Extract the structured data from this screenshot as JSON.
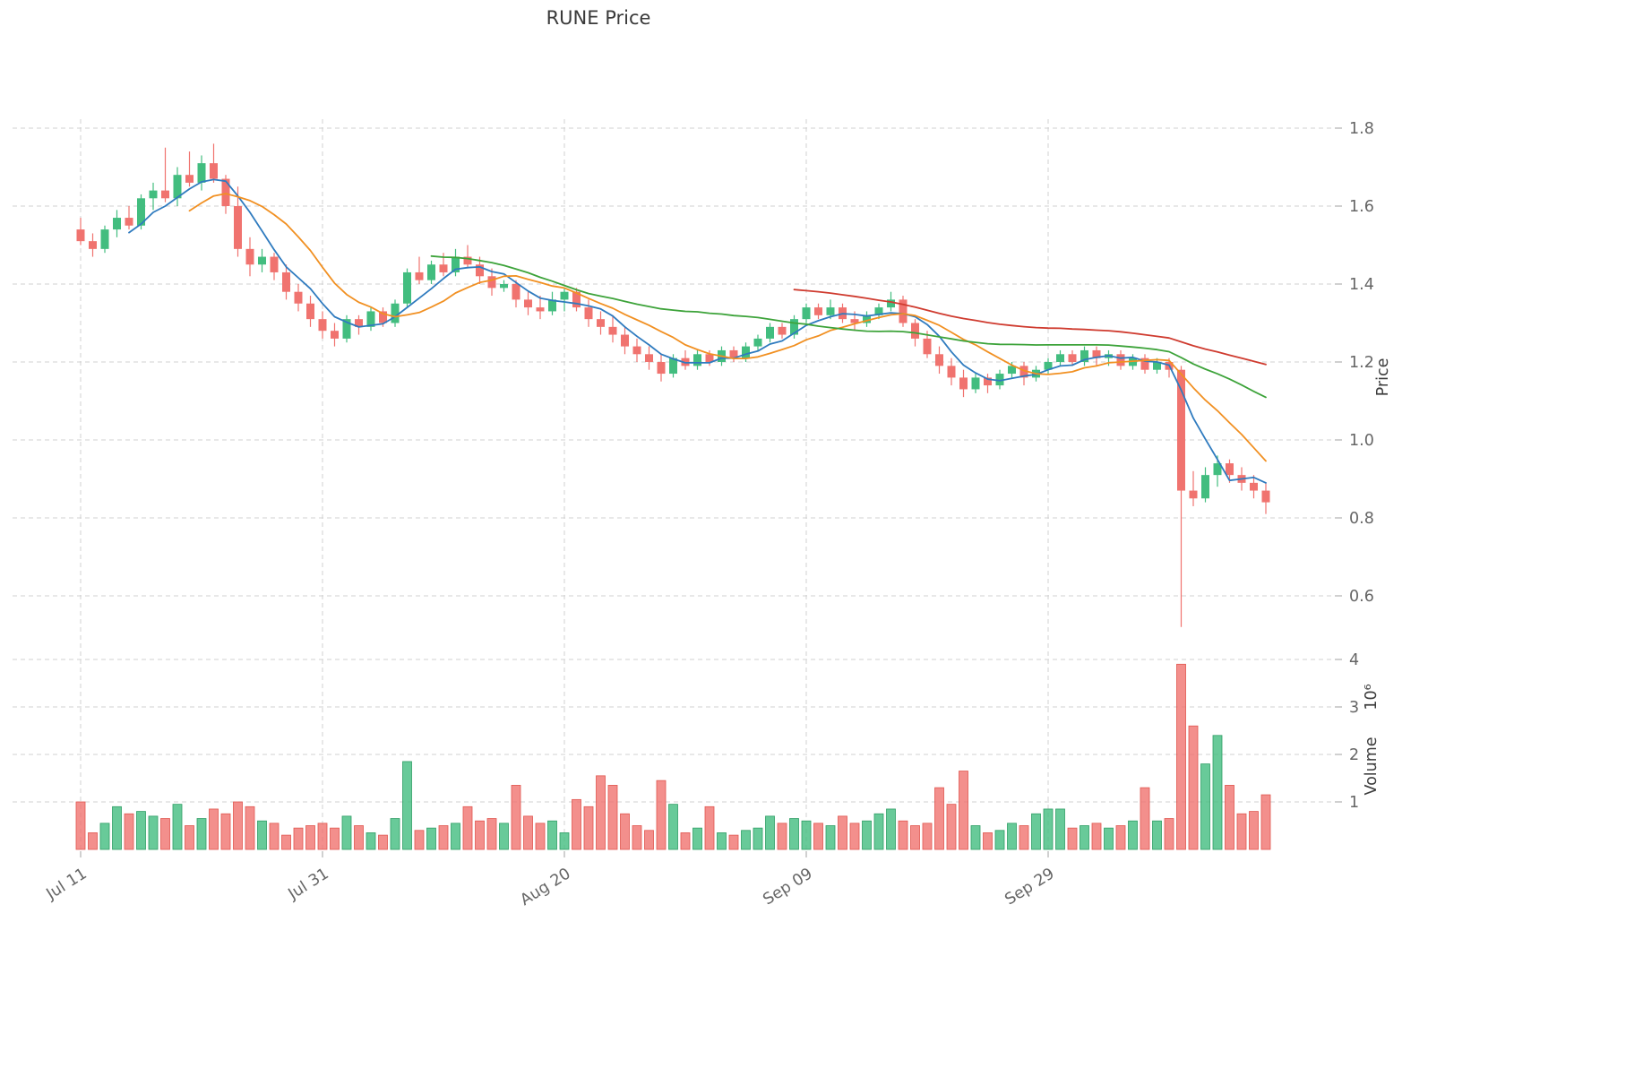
{
  "chart_data": {
    "type": "candlestick",
    "title": "RUNE Price",
    "xlabel": "",
    "ylabel": "Price",
    "ylabel2": "Volume",
    "ylabel2_offset": "10⁶",
    "grid": true,
    "legend": false,
    "ylim": [
      0.45,
      1.85
    ],
    "volume_ylim": [
      0,
      4.3
    ],
    "price_ticks": [
      0.6,
      0.8,
      1.0,
      1.2,
      1.4,
      1.6,
      1.8
    ],
    "volume_ticks": [
      1,
      2,
      3,
      4
    ],
    "x_ticks": [
      {
        "label": "Jul 11",
        "i": 0
      },
      {
        "label": "Jul 31",
        "i": 20
      },
      {
        "label": "Aug 20",
        "i": 40
      },
      {
        "label": "Sep 09",
        "i": 60
      },
      {
        "label": "Sep 29",
        "i": 80
      }
    ],
    "candle_columns": [
      "open",
      "high",
      "low",
      "close",
      "volume_millions"
    ],
    "candles": [
      [
        1.54,
        1.57,
        1.5,
        1.51,
        1.0
      ],
      [
        1.51,
        1.53,
        1.47,
        1.49,
        0.35
      ],
      [
        1.49,
        1.55,
        1.48,
        1.54,
        0.55
      ],
      [
        1.54,
        1.59,
        1.52,
        1.57,
        0.9
      ],
      [
        1.57,
        1.6,
        1.54,
        1.55,
        0.75
      ],
      [
        1.55,
        1.63,
        1.54,
        1.62,
        0.8
      ],
      [
        1.62,
        1.66,
        1.59,
        1.64,
        0.7
      ],
      [
        1.64,
        1.75,
        1.61,
        1.62,
        0.65
      ],
      [
        1.62,
        1.7,
        1.6,
        1.68,
        0.95
      ],
      [
        1.68,
        1.74,
        1.65,
        1.66,
        0.5
      ],
      [
        1.66,
        1.73,
        1.64,
        1.71,
        0.65
      ],
      [
        1.71,
        1.76,
        1.66,
        1.67,
        0.85
      ],
      [
        1.67,
        1.68,
        1.58,
        1.6,
        0.75
      ],
      [
        1.6,
        1.65,
        1.47,
        1.49,
        1.0
      ],
      [
        1.49,
        1.52,
        1.42,
        1.45,
        0.9
      ],
      [
        1.45,
        1.49,
        1.43,
        1.47,
        0.6
      ],
      [
        1.47,
        1.48,
        1.41,
        1.43,
        0.55
      ],
      [
        1.43,
        1.45,
        1.36,
        1.38,
        0.3
      ],
      [
        1.38,
        1.4,
        1.33,
        1.35,
        0.45
      ],
      [
        1.35,
        1.37,
        1.29,
        1.31,
        0.5
      ],
      [
        1.31,
        1.33,
        1.26,
        1.28,
        0.55
      ],
      [
        1.28,
        1.3,
        1.24,
        1.26,
        0.45
      ],
      [
        1.26,
        1.32,
        1.25,
        1.31,
        0.7
      ],
      [
        1.31,
        1.32,
        1.27,
        1.29,
        0.5
      ],
      [
        1.29,
        1.34,
        1.28,
        1.33,
        0.35
      ],
      [
        1.33,
        1.34,
        1.29,
        1.3,
        0.3
      ],
      [
        1.3,
        1.36,
        1.29,
        1.35,
        0.65
      ],
      [
        1.35,
        1.44,
        1.34,
        1.43,
        1.85
      ],
      [
        1.43,
        1.47,
        1.4,
        1.41,
        0.4
      ],
      [
        1.41,
        1.46,
        1.4,
        1.45,
        0.45
      ],
      [
        1.45,
        1.48,
        1.42,
        1.43,
        0.5
      ],
      [
        1.43,
        1.49,
        1.42,
        1.47,
        0.55
      ],
      [
        1.47,
        1.5,
        1.44,
        1.45,
        0.9
      ],
      [
        1.45,
        1.47,
        1.4,
        1.42,
        0.6
      ],
      [
        1.42,
        1.44,
        1.37,
        1.39,
        0.65
      ],
      [
        1.39,
        1.41,
        1.38,
        1.4,
        0.55
      ],
      [
        1.4,
        1.41,
        1.34,
        1.36,
        1.35
      ],
      [
        1.36,
        1.38,
        1.32,
        1.34,
        0.7
      ],
      [
        1.34,
        1.37,
        1.31,
        1.33,
        0.55
      ],
      [
        1.33,
        1.38,
        1.32,
        1.36,
        0.6
      ],
      [
        1.36,
        1.39,
        1.33,
        1.38,
        0.35
      ],
      [
        1.38,
        1.39,
        1.33,
        1.34,
        1.05
      ],
      [
        1.34,
        1.36,
        1.29,
        1.31,
        0.9
      ],
      [
        1.31,
        1.33,
        1.27,
        1.29,
        1.55
      ],
      [
        1.29,
        1.32,
        1.25,
        1.27,
        1.35
      ],
      [
        1.27,
        1.29,
        1.22,
        1.24,
        0.75
      ],
      [
        1.24,
        1.26,
        1.2,
        1.22,
        0.5
      ],
      [
        1.22,
        1.24,
        1.18,
        1.2,
        0.4
      ],
      [
        1.2,
        1.22,
        1.15,
        1.17,
        1.45
      ],
      [
        1.17,
        1.22,
        1.16,
        1.21,
        0.95
      ],
      [
        1.21,
        1.23,
        1.18,
        1.19,
        0.35
      ],
      [
        1.19,
        1.23,
        1.18,
        1.22,
        0.45
      ],
      [
        1.22,
        1.23,
        1.19,
        1.2,
        0.9
      ],
      [
        1.2,
        1.24,
        1.19,
        1.23,
        0.35
      ],
      [
        1.23,
        1.24,
        1.2,
        1.21,
        0.3
      ],
      [
        1.21,
        1.25,
        1.2,
        1.24,
        0.4
      ],
      [
        1.24,
        1.27,
        1.23,
        1.26,
        0.45
      ],
      [
        1.26,
        1.3,
        1.25,
        1.29,
        0.7
      ],
      [
        1.29,
        1.3,
        1.26,
        1.27,
        0.55
      ],
      [
        1.27,
        1.32,
        1.26,
        1.31,
        0.65
      ],
      [
        1.31,
        1.35,
        1.3,
        1.34,
        0.6
      ],
      [
        1.34,
        1.35,
        1.31,
        1.32,
        0.55
      ],
      [
        1.32,
        1.36,
        1.31,
        1.34,
        0.5
      ],
      [
        1.34,
        1.35,
        1.3,
        1.31,
        0.7
      ],
      [
        1.31,
        1.33,
        1.28,
        1.3,
        0.55
      ],
      [
        1.3,
        1.33,
        1.29,
        1.32,
        0.6
      ],
      [
        1.32,
        1.35,
        1.31,
        1.34,
        0.75
      ],
      [
        1.34,
        1.38,
        1.33,
        1.36,
        0.85
      ],
      [
        1.36,
        1.37,
        1.29,
        1.3,
        0.6
      ],
      [
        1.3,
        1.31,
        1.24,
        1.26,
        0.5
      ],
      [
        1.26,
        1.28,
        1.21,
        1.22,
        0.55
      ],
      [
        1.22,
        1.24,
        1.17,
        1.19,
        1.3
      ],
      [
        1.19,
        1.21,
        1.14,
        1.16,
        0.95
      ],
      [
        1.16,
        1.18,
        1.11,
        1.13,
        1.65
      ],
      [
        1.13,
        1.17,
        1.12,
        1.16,
        0.5
      ],
      [
        1.16,
        1.17,
        1.12,
        1.14,
        0.35
      ],
      [
        1.14,
        1.18,
        1.13,
        1.17,
        0.4
      ],
      [
        1.17,
        1.2,
        1.16,
        1.19,
        0.55
      ],
      [
        1.19,
        1.2,
        1.14,
        1.16,
        0.5
      ],
      [
        1.16,
        1.19,
        1.15,
        1.18,
        0.75
      ],
      [
        1.18,
        1.21,
        1.17,
        1.2,
        0.85
      ],
      [
        1.2,
        1.23,
        1.19,
        1.22,
        0.85
      ],
      [
        1.22,
        1.23,
        1.19,
        1.2,
        0.45
      ],
      [
        1.2,
        1.24,
        1.19,
        1.23,
        0.5
      ],
      [
        1.23,
        1.24,
        1.19,
        1.21,
        0.55
      ],
      [
        1.21,
        1.23,
        1.19,
        1.22,
        0.45
      ],
      [
        1.22,
        1.23,
        1.18,
        1.19,
        0.5
      ],
      [
        1.19,
        1.22,
        1.18,
        1.21,
        0.6
      ],
      [
        1.21,
        1.22,
        1.17,
        1.18,
        1.3
      ],
      [
        1.18,
        1.21,
        1.17,
        1.2,
        0.6
      ],
      [
        1.2,
        1.21,
        1.16,
        1.18,
        0.65
      ],
      [
        1.18,
        1.19,
        0.52,
        0.87,
        3.9
      ],
      [
        0.87,
        0.92,
        0.83,
        0.85,
        2.6
      ],
      [
        0.85,
        0.93,
        0.84,
        0.91,
        1.8
      ],
      [
        0.91,
        0.96,
        0.88,
        0.94,
        2.4
      ],
      [
        0.94,
        0.95,
        0.89,
        0.91,
        1.35
      ],
      [
        0.91,
        0.93,
        0.87,
        0.89,
        0.75
      ],
      [
        0.89,
        0.91,
        0.85,
        0.87,
        0.8
      ],
      [
        0.87,
        0.89,
        0.81,
        0.84,
        1.15
      ]
    ],
    "moving_averages": [
      {
        "name": "MA5",
        "window": 5,
        "color": "#2f7bbf"
      },
      {
        "name": "MA10",
        "window": 10,
        "color": "#f19022"
      },
      {
        "name": "MA30",
        "window": 30,
        "color": "#3da33a"
      },
      {
        "name": "MA60",
        "window": 60,
        "color": "#cf3b2f"
      }
    ],
    "style": {
      "up_color": "#42bd7f",
      "down_color": "#f0736f",
      "up_edge": "#2f9e65",
      "down_edge": "#e0564f",
      "grid_color": "#d0d0d0",
      "tick_color": "#666666",
      "title_color": "#3a3a3a",
      "axis_label_color": "#3d3d3d"
    }
  }
}
